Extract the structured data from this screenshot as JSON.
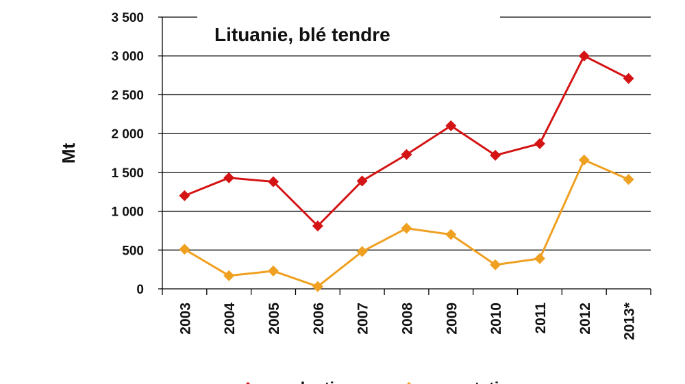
{
  "chart_data": {
    "type": "line",
    "title": "Lituanie, blé tendre",
    "ylabel": "Mt",
    "xlabel": "",
    "categories": [
      "2003",
      "2004",
      "2005",
      "2006",
      "2007",
      "2008",
      "2009",
      "2010",
      "2011",
      "2012",
      "2013*"
    ],
    "y_tick_labels": [
      "0",
      "500",
      "1 000",
      "1 500",
      "2 000",
      "2 500",
      "3 000",
      "3 500"
    ],
    "ylim": [
      0,
      3500
    ],
    "grid": true,
    "legend_position": "bottom",
    "series": [
      {
        "name": "production",
        "color": "#d41414",
        "marker": "diamond",
        "values": [
          1200,
          1430,
          1380,
          810,
          1390,
          1730,
          2100,
          1720,
          1870,
          3000,
          2710
        ]
      },
      {
        "name": "exportation",
        "color": "#f0a020",
        "marker": "diamond",
        "values": [
          510,
          170,
          230,
          30,
          480,
          780,
          700,
          310,
          390,
          1660,
          1410
        ]
      }
    ]
  }
}
